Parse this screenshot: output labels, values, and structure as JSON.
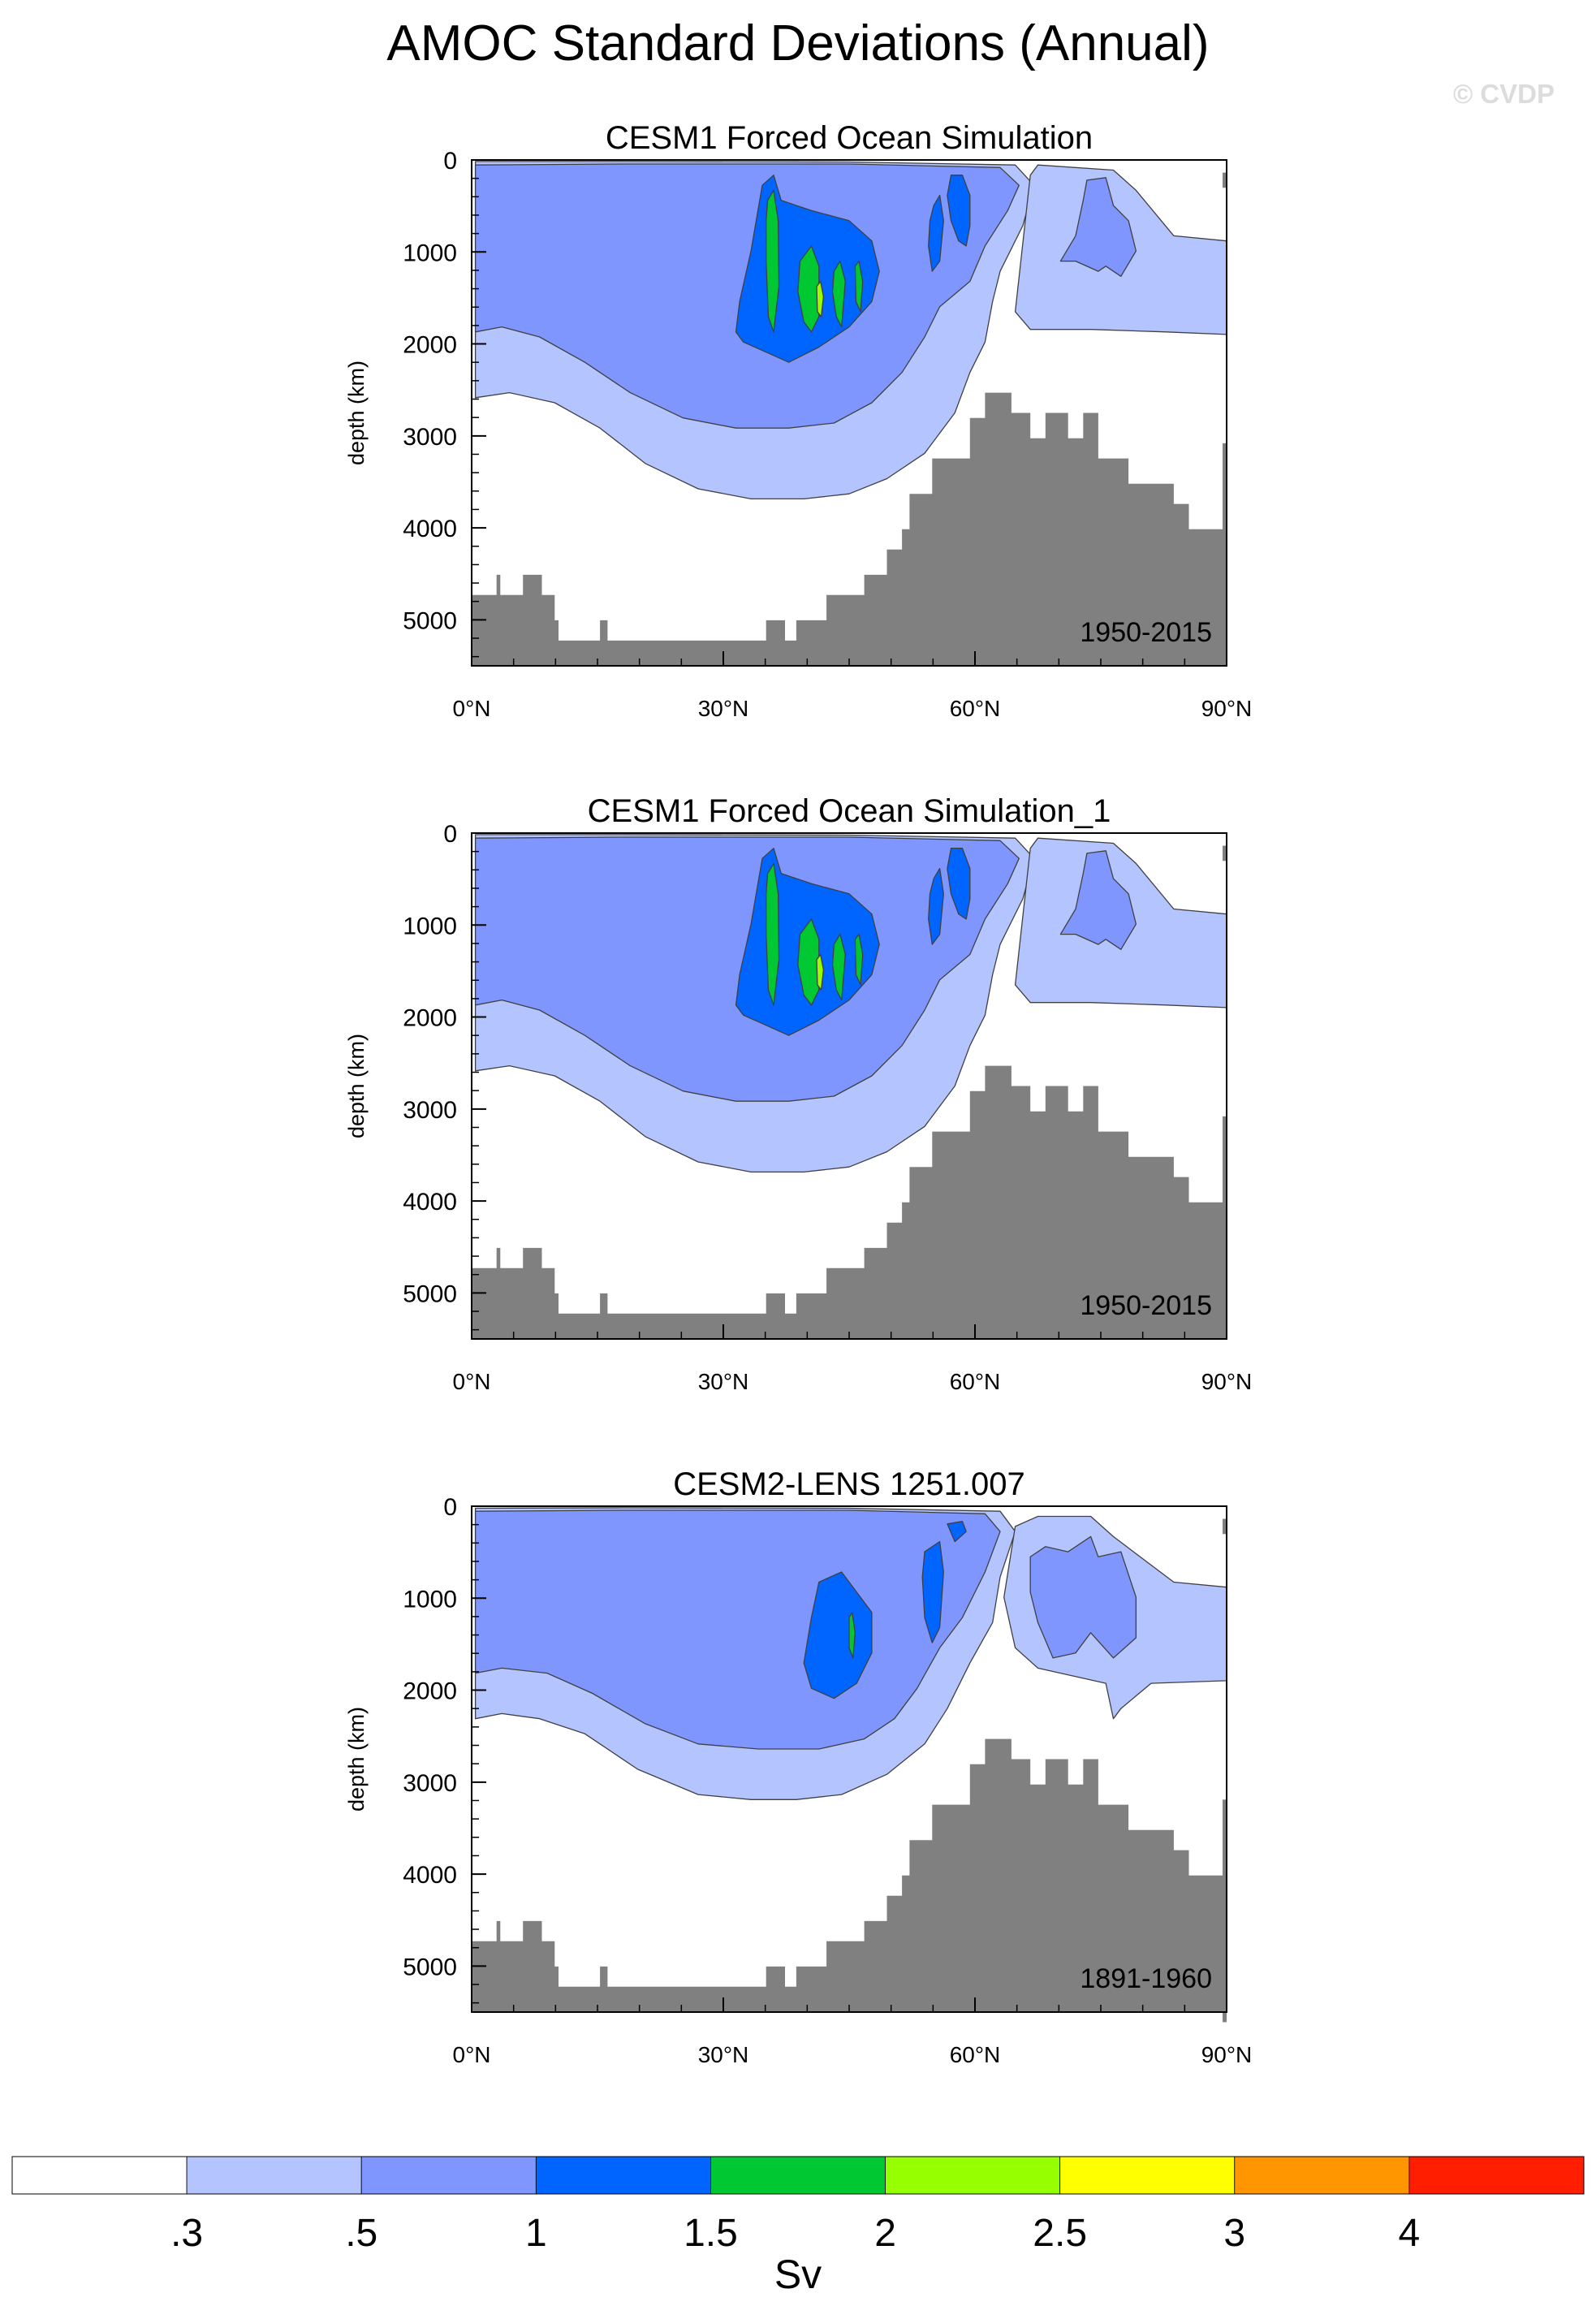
{
  "figure": {
    "title": "AMOC Standard Deviations (Annual)",
    "watermark": "© CVDP"
  },
  "colorbar": {
    "unit_label": "Sv",
    "levels": [
      ".3",
      ".5",
      "1",
      "1.5",
      "2",
      "2.5",
      "3",
      "4"
    ],
    "colors": [
      "#ffffff",
      "#b4c4ff",
      "#8096ff",
      "#0064ff",
      "#00c832",
      "#96ff00",
      "#ffff00",
      "#ff9600",
      "#ff1e00"
    ]
  },
  "terrain_color": "#808080",
  "chart_data": [
    {
      "type": "contour",
      "title": "CESM1 Forced Ocean Simulation",
      "period": "1950-2015",
      "ylabel": "depth (km)",
      "xticks": [
        "0°N",
        "30°N",
        "60°N",
        "90°N"
      ],
      "yticks": [
        "0",
        "1000",
        "2000",
        "3000",
        "4000",
        "5000"
      ],
      "xlim": [
        0,
        90
      ],
      "ylim": [
        5500,
        0
      ],
      "max_value_sv": 2.5
    },
    {
      "type": "contour",
      "title": "CESM1 Forced Ocean Simulation_1",
      "period": "1950-2015",
      "ylabel": "depth (km)",
      "xticks": [
        "0°N",
        "30°N",
        "60°N",
        "90°N"
      ],
      "yticks": [
        "0",
        "1000",
        "2000",
        "3000",
        "4000",
        "5000"
      ],
      "xlim": [
        0,
        90
      ],
      "ylim": [
        5500,
        0
      ],
      "max_value_sv": 2.5
    },
    {
      "type": "contour",
      "title": "CESM2-LENS 1251.007",
      "period": "1891-1960",
      "ylabel": "depth (km)",
      "xticks": [
        "0°N",
        "30°N",
        "60°N",
        "90°N"
      ],
      "yticks": [
        "0",
        "1000",
        "2000",
        "3000",
        "4000",
        "5000"
      ],
      "xlim": [
        0,
        90
      ],
      "ylim": [
        5500,
        0
      ],
      "max_value_sv": 2.0
    }
  ]
}
